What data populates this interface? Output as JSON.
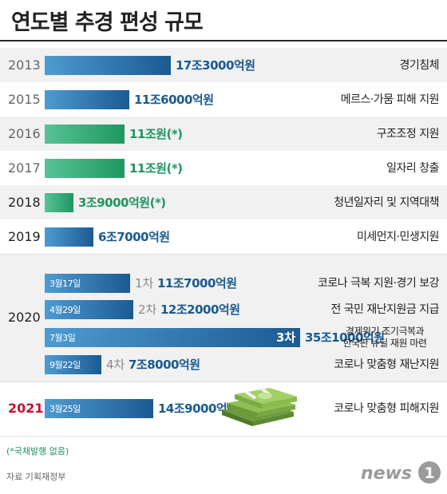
{
  "title": "연도별 추경 편성 규모",
  "colors": {
    "blue": "#1a5a90",
    "green": "#1f9560",
    "red": "#c4122f"
  },
  "chart_data": {
    "type": "bar",
    "orientation": "horizontal",
    "unit": "원",
    "rows": [
      {
        "year": "2013",
        "amount": 17.3,
        "label": "17조3000억원",
        "reason": "경기침체",
        "color": "blue"
      },
      {
        "year": "2015",
        "amount": 11.6,
        "label": "11조6000억원",
        "reason": "메르스·가뭄 피해 지원",
        "color": "blue"
      },
      {
        "year": "2016",
        "amount": 11.0,
        "label": "11조원(*)",
        "reason": "구조조정 지원",
        "color": "green"
      },
      {
        "year": "2017",
        "amount": 11.0,
        "label": "11조원(*)",
        "reason": "일자리 창출",
        "color": "green"
      },
      {
        "year": "2018",
        "amount": 3.9,
        "label": "3조9000억원(*)",
        "reason": "청년일자리 및 지역대책",
        "color": "green"
      },
      {
        "year": "2019",
        "amount": 6.7,
        "label": "6조7000억원",
        "reason": "미세먼지·민생지원",
        "color": "blue"
      }
    ],
    "year_2020": {
      "year": "2020",
      "rounds": [
        {
          "date": "3월17일",
          "round": "1차",
          "amount": 11.7,
          "label": "11조7000억원",
          "reason": "코로나 극복 지원·경기 보강"
        },
        {
          "date": "4월29일",
          "round": "2차",
          "amount": 12.2,
          "label": "12조2000억원",
          "reason": "전 국민 재난지원금 지급"
        },
        {
          "date": "7월3일",
          "round": "3차",
          "amount": 35.1,
          "label": "35조1000억원",
          "reason_lines": [
            "경제위기 조기극복과",
            "한국판 뉴딜 재원 마련"
          ]
        },
        {
          "date": "9월22일",
          "round": "4차",
          "amount": 7.8,
          "label": "7조8000억원",
          "reason": "코로나 맞춤형 재난지원"
        }
      ]
    },
    "year_2021": {
      "year": "2021",
      "date": "3월25일",
      "amount": 14.9,
      "label": "14조9000억원",
      "reason": "코로나 맞춤형 피해지원"
    }
  },
  "footnote": "(*국채발행 없음)",
  "source": "자료 기획재정부",
  "logo": {
    "text": "news",
    "mark": "1"
  },
  "icons": [
    "money-stack-icon",
    "news1-logo"
  ]
}
